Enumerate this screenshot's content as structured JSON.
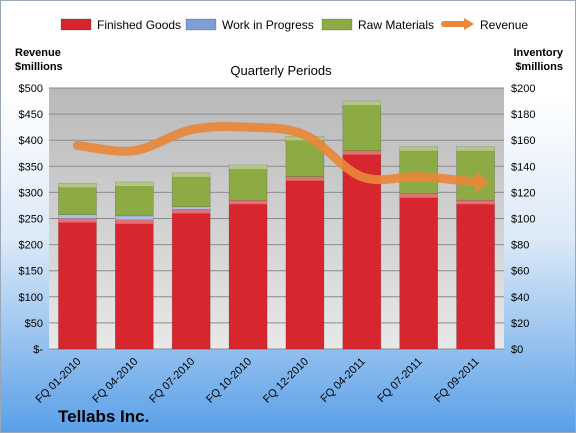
{
  "chart_data": {
    "type": "bar",
    "title": "Quarterly Periods",
    "company": "Tellabs Inc.",
    "categories": [
      "FQ 01-2010",
      "FQ 04-2010",
      "FQ 07-2010",
      "FQ 10-2010",
      "FQ 12-2010",
      "FQ 04-2011",
      "FQ 07-2011",
      "FQ 09-2011"
    ],
    "series": [
      {
        "name": "Finished Goods",
        "axis": "right",
        "color": "#d7262d",
        "values": [
          100,
          99,
          107,
          114,
          132,
          152,
          119,
          114
        ]
      },
      {
        "name": "Work in Progress",
        "axis": "right",
        "color": "#7b9fd6",
        "values": [
          3,
          3,
          2,
          0,
          0,
          0,
          0,
          0
        ]
      },
      {
        "name": "Raw Materials",
        "axis": "right",
        "color": "#8dab45",
        "values": [
          24,
          26,
          26,
          27,
          31,
          38,
          36,
          41
        ]
      },
      {
        "name": "Revenue",
        "axis": "left",
        "type": "line",
        "color": "#e8873a",
        "values": [
          390,
          380,
          420,
          425,
          410,
          330,
          330,
          320
        ]
      }
    ],
    "left_axis": {
      "label_line1": "Revenue",
      "label_line2": "$millions",
      "ylim": [
        0,
        500
      ],
      "ticks": [
        0,
        50,
        100,
        150,
        200,
        250,
        300,
        350,
        400,
        450,
        500
      ],
      "tick_labels": [
        "$-",
        "$50",
        "$100",
        "$150",
        "$200",
        "$250",
        "$300",
        "$350",
        "$400",
        "$450",
        "$500"
      ]
    },
    "right_axis": {
      "label_line1": "Inventory",
      "label_line2": "$millions",
      "ylim": [
        0,
        200
      ],
      "ticks": [
        0,
        20,
        40,
        60,
        80,
        100,
        120,
        140,
        160,
        180,
        200
      ],
      "tick_labels": [
        "$0",
        "$20",
        "$40",
        "$60",
        "$80",
        "$100",
        "$120",
        "$140",
        "$160",
        "$180",
        "$200"
      ]
    },
    "grid": true,
    "legend_position": "top"
  }
}
